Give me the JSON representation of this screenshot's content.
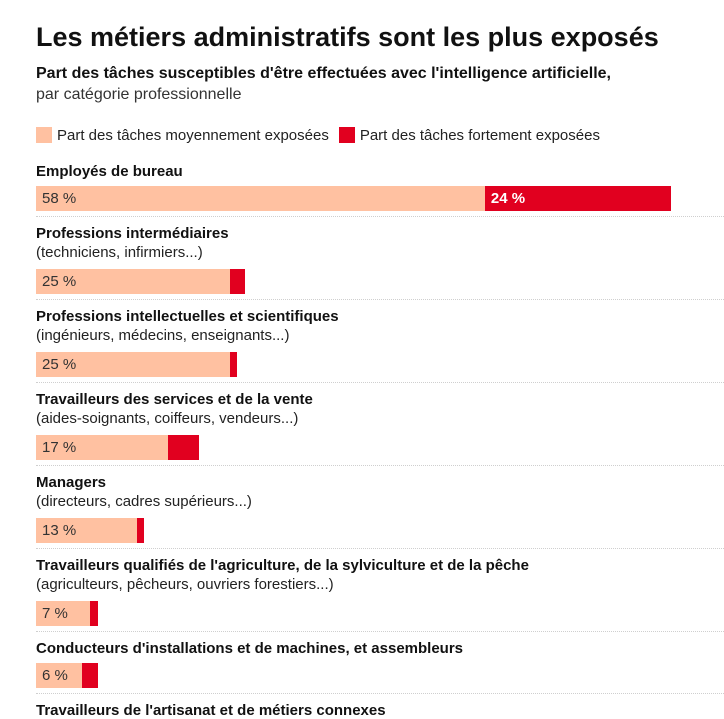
{
  "title": "Les métiers administratifs sont les plus exposés",
  "subtitle_bold": "Part des tâches susceptibles d'être effectuées avec l'intelligence artificielle,",
  "subtitle_light": "par catégorie professionnelle",
  "colors": {
    "moderate": "#ffc1a1",
    "strong": "#e1001f"
  },
  "chart_data": {
    "type": "bar",
    "orientation": "horizontal",
    "stacked": true,
    "title": "Les métiers administratifs sont les plus exposés",
    "subtitle": "Part des tâches susceptibles d'être effectuées avec l'intelligence artificielle, par catégorie professionnelle",
    "legend_position": "top-left",
    "unit": "%",
    "series": [
      {
        "name": "Part des tâches moyennement exposées",
        "color": "#ffc1a1"
      },
      {
        "name": "Part des tâches fortement exposées",
        "color": "#e1001f"
      }
    ],
    "categories": [
      {
        "label": "Employés de bureau",
        "sub": "",
        "moderate": 58,
        "strong": 24,
        "moderate_label": "58 %",
        "strong_label": "24 %"
      },
      {
        "label": "Professions intermédiaires",
        "sub": "(techniciens, infirmiers...)",
        "moderate": 25,
        "strong": 2,
        "moderate_label": "25 %",
        "strong_label": ""
      },
      {
        "label": "Professions intellectuelles et scientifiques",
        "sub": "(ingénieurs, médecins, enseignants...)",
        "moderate": 25,
        "strong": 1,
        "moderate_label": "25 %",
        "strong_label": ""
      },
      {
        "label": "Travailleurs des services et de la vente",
        "sub": "(aides-soignants, coiffeurs, vendeurs...)",
        "moderate": 17,
        "strong": 4,
        "moderate_label": "17 %",
        "strong_label": ""
      },
      {
        "label": "Managers",
        "sub": "(directeurs, cadres supérieurs...)",
        "moderate": 13,
        "strong": 1,
        "moderate_label": "13 %",
        "strong_label": ""
      },
      {
        "label": "Travailleurs qualifiés de l'agriculture, de la sylviculture et de la pêche",
        "sub": "(agriculteurs, pêcheurs, ouvriers forestiers...)",
        "moderate": 7,
        "strong": 1,
        "moderate_label": "7 %",
        "strong_label": ""
      },
      {
        "label": "Conducteurs d'installations et de machines, et assembleurs",
        "sub": "",
        "moderate": 6,
        "strong": 2,
        "moderate_label": "6 %",
        "strong_label": ""
      },
      {
        "label": "Travailleurs de l'artisanat et de métiers connexes",
        "sub": "",
        "moderate": null,
        "strong": null,
        "moderate_label": "",
        "strong_label": ""
      }
    ]
  }
}
